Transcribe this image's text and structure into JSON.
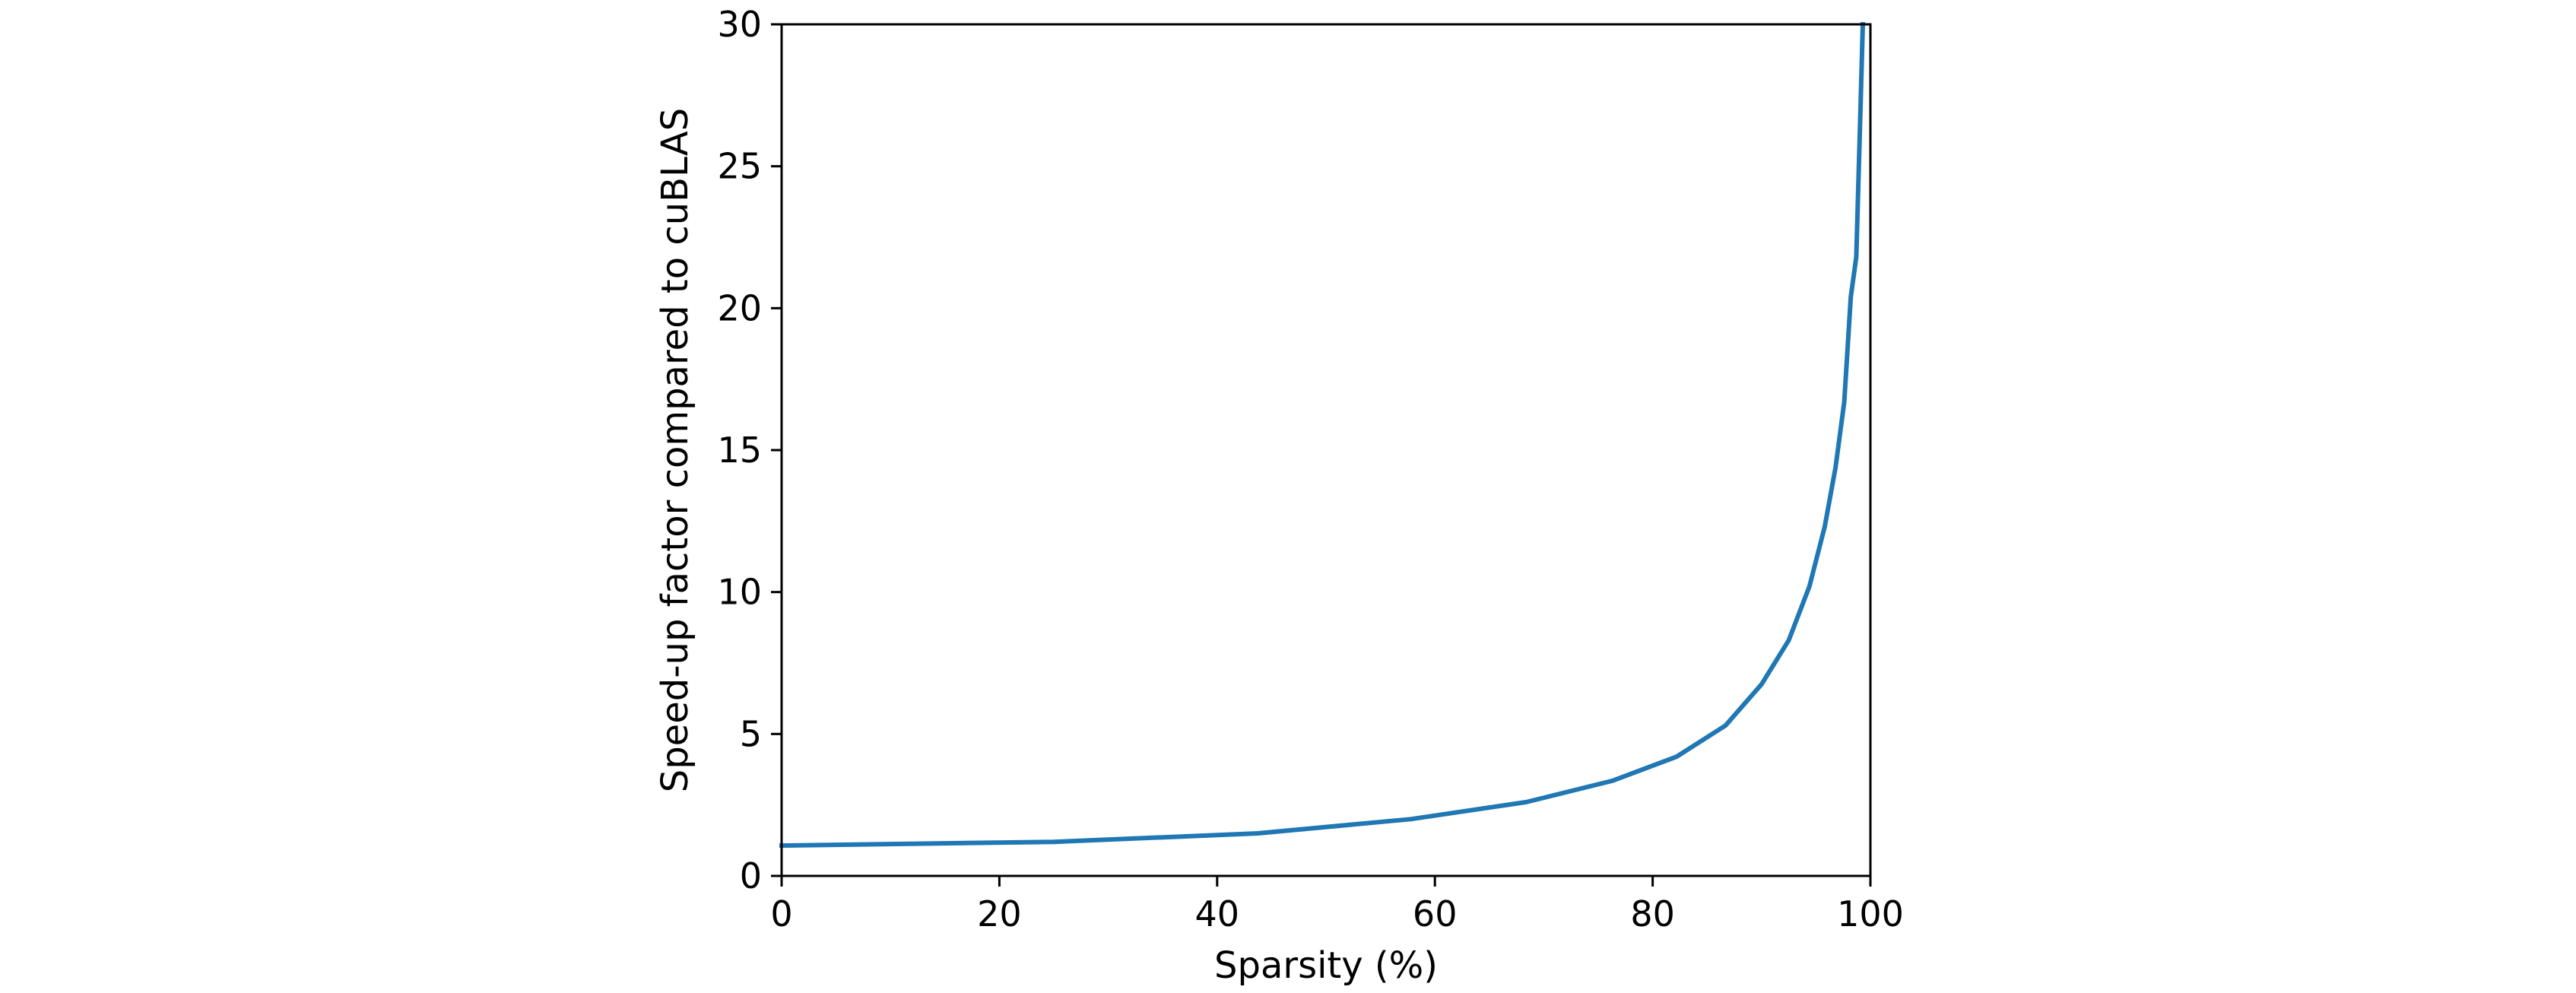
{
  "chart_data": {
    "type": "line",
    "title": "",
    "xlabel": "Sparsity (%)",
    "ylabel": "Speed-up factor compared to cuBLAS",
    "xlim": [
      0,
      100
    ],
    "ylim": [
      0,
      30
    ],
    "xticks": [
      0,
      20,
      40,
      60,
      80,
      100
    ],
    "yticks": [
      0,
      5,
      10,
      15,
      20,
      25,
      30
    ],
    "grid": false,
    "legend": "none",
    "series": [
      {
        "color": "#1f77b4",
        "x": [
          0,
          25,
          43.75,
          57.8,
          68.4,
          76.3,
          82.2,
          86.7,
          90.0,
          92.5,
          94.4,
          95.8,
          96.8,
          97.6,
          98.2,
          98.7,
          99.05,
          99.3
        ],
        "y": [
          1.07,
          1.2,
          1.5,
          2.0,
          2.6,
          3.35,
          4.2,
          5.3,
          6.75,
          8.3,
          10.2,
          12.3,
          14.4,
          16.7,
          20.4,
          21.8,
          26.5,
          30.0
        ]
      }
    ]
  }
}
